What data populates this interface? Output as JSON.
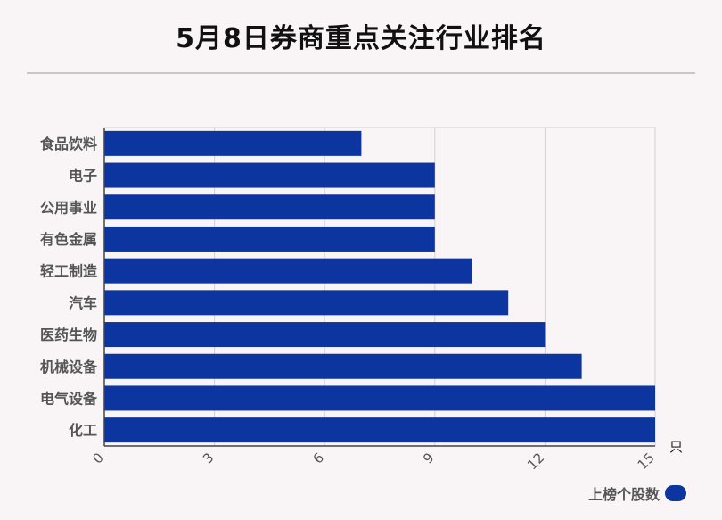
{
  "title": "5月8日券商重点关注行业排名",
  "unit": "只",
  "legend": "上榜个股数",
  "colors": {
    "bar": "#0c35a0",
    "grid": "#d4d0d2",
    "axis": "#444444",
    "label": "#555555"
  },
  "chart_data": {
    "type": "bar",
    "orientation": "horizontal",
    "categories": [
      "食品饮料",
      "电子",
      "公用事业",
      "有色金属",
      "轻工制造",
      "汽车",
      "医药生物",
      "机械设备",
      "电气设备",
      "化工"
    ],
    "series": [
      {
        "name": "上榜个股数",
        "values": [
          7,
          9,
          9,
          9,
          10,
          11,
          12,
          13,
          15,
          15
        ]
      }
    ],
    "xlim": [
      0,
      15
    ],
    "xticks": [
      0,
      3,
      6,
      9,
      12,
      15
    ],
    "grid": true,
    "legend_position": "bottom-right"
  }
}
